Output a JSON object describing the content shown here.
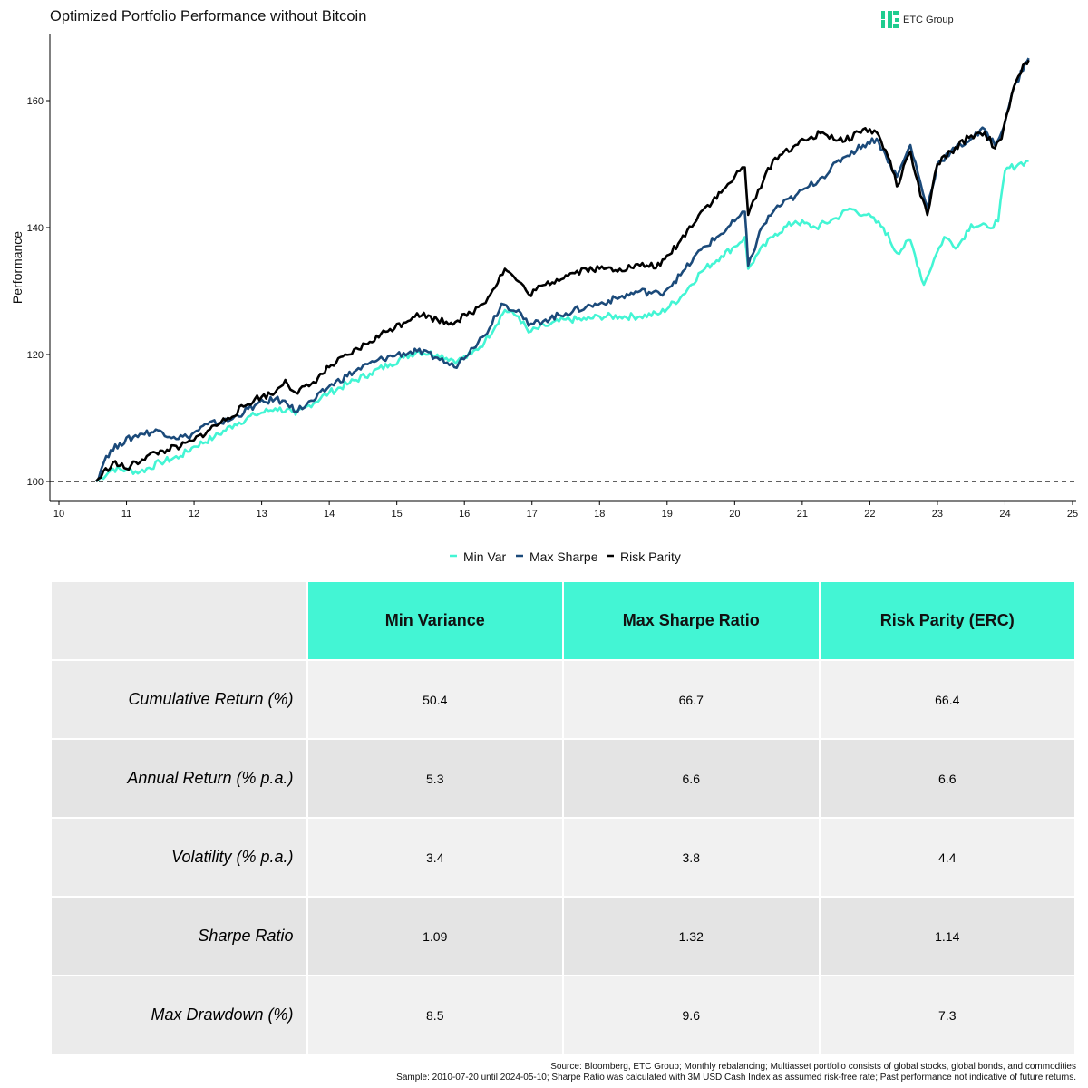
{
  "logo": {
    "text": "ETC Group",
    "color": "#1fcc8f"
  },
  "chart_data": {
    "type": "line",
    "title": "Optimized Portfolio Performance without Bitcoin",
    "xlabel": "",
    "ylabel": "Performance",
    "x_ticks": [
      "10",
      "11",
      "12",
      "13",
      "14",
      "15",
      "16",
      "17",
      "18",
      "19",
      "20",
      "21",
      "22",
      "23",
      "24",
      "25"
    ],
    "y_ticks": [
      100,
      120,
      140,
      160
    ],
    "xlim": [
      2010.0,
      2025.0
    ],
    "ylim": [
      96,
      170
    ],
    "reference_line": {
      "y": 100,
      "style": "dashed"
    },
    "legend_position": "bottom",
    "series": [
      {
        "name": "Min Var",
        "color": "#43f5d4",
        "points": [
          [
            2010.55,
            100
          ],
          [
            2010.8,
            102
          ],
          [
            2011,
            101.8
          ],
          [
            2011.2,
            101.5
          ],
          [
            2011.5,
            103
          ],
          [
            2011.8,
            104
          ],
          [
            2012,
            105.5
          ],
          [
            2012.3,
            107
          ],
          [
            2012.6,
            109
          ],
          [
            2012.9,
            110.5
          ],
          [
            2013.2,
            111.5
          ],
          [
            2013.45,
            111
          ],
          [
            2013.5,
            110.5
          ],
          [
            2013.7,
            112
          ],
          [
            2014,
            114
          ],
          [
            2014.3,
            115.5
          ],
          [
            2014.6,
            117
          ],
          [
            2014.9,
            118.5
          ],
          [
            2015.1,
            119.5
          ],
          [
            2015.3,
            120.5
          ],
          [
            2015.6,
            120
          ],
          [
            2015.9,
            119
          ],
          [
            2016.1,
            120
          ],
          [
            2016.3,
            122
          ],
          [
            2016.6,
            127
          ],
          [
            2016.8,
            126
          ],
          [
            2016.95,
            123.5
          ],
          [
            2017.2,
            124.5
          ],
          [
            2017.5,
            125.5
          ],
          [
            2017.8,
            125.5
          ],
          [
            2018,
            126
          ],
          [
            2018.3,
            126
          ],
          [
            2018.6,
            126
          ],
          [
            2018.9,
            126.5
          ],
          [
            2019.2,
            129
          ],
          [
            2019.5,
            133
          ],
          [
            2019.8,
            135.5
          ],
          [
            2020.0,
            137
          ],
          [
            2020.15,
            138.5
          ],
          [
            2020.2,
            133.5
          ],
          [
            2020.35,
            136
          ],
          [
            2020.6,
            139
          ],
          [
            2020.9,
            141
          ],
          [
            2021.2,
            140
          ],
          [
            2021.5,
            141.5
          ],
          [
            2021.7,
            143
          ],
          [
            2021.95,
            142
          ],
          [
            2022.2,
            140
          ],
          [
            2022.4,
            136
          ],
          [
            2022.6,
            138
          ],
          [
            2022.8,
            131
          ],
          [
            2022.95,
            135
          ],
          [
            2023.1,
            138.5
          ],
          [
            2023.3,
            137
          ],
          [
            2023.5,
            140.5
          ],
          [
            2023.75,
            140
          ],
          [
            2023.9,
            141
          ],
          [
            2024.0,
            149
          ],
          [
            2024.2,
            150
          ],
          [
            2024.35,
            150.5
          ]
        ]
      },
      {
        "name": "Max Sharpe",
        "color": "#1b4a7a",
        "points": [
          [
            2010.55,
            100
          ],
          [
            2010.7,
            104
          ],
          [
            2010.9,
            106
          ],
          [
            2011.2,
            107.5
          ],
          [
            2011.5,
            108
          ],
          [
            2011.7,
            107
          ],
          [
            2011.9,
            107
          ],
          [
            2012.2,
            109
          ],
          [
            2012.5,
            109.5
          ],
          [
            2012.9,
            112
          ],
          [
            2013.2,
            113
          ],
          [
            2013.45,
            112
          ],
          [
            2013.5,
            111
          ],
          [
            2013.8,
            113
          ],
          [
            2014,
            115
          ],
          [
            2014.4,
            117.5
          ],
          [
            2014.7,
            119
          ],
          [
            2015.0,
            120
          ],
          [
            2015.3,
            120.5
          ],
          [
            2015.6,
            119.5
          ],
          [
            2015.85,
            118
          ],
          [
            2016.1,
            121
          ],
          [
            2016.3,
            123
          ],
          [
            2016.55,
            128
          ],
          [
            2016.8,
            127
          ],
          [
            2016.95,
            124.5
          ],
          [
            2017.2,
            125.5
          ],
          [
            2017.5,
            126.5
          ],
          [
            2017.8,
            127.5
          ],
          [
            2018.0,
            128
          ],
          [
            2018.3,
            129
          ],
          [
            2018.6,
            130
          ],
          [
            2018.9,
            129.5
          ],
          [
            2019.2,
            132.5
          ],
          [
            2019.5,
            136.5
          ],
          [
            2019.8,
            139
          ],
          [
            2020.0,
            141
          ],
          [
            2020.15,
            142.5
          ],
          [
            2020.2,
            134
          ],
          [
            2020.4,
            140
          ],
          [
            2020.6,
            143
          ],
          [
            2020.9,
            145
          ],
          [
            2021.1,
            146.5
          ],
          [
            2021.3,
            148
          ],
          [
            2021.6,
            151
          ],
          [
            2021.9,
            153
          ],
          [
            2022.1,
            154
          ],
          [
            2022.3,
            150
          ],
          [
            2022.4,
            148
          ],
          [
            2022.6,
            153
          ],
          [
            2022.75,
            147
          ],
          [
            2022.85,
            143
          ],
          [
            2023.0,
            150
          ],
          [
            2023.2,
            152
          ],
          [
            2023.5,
            154
          ],
          [
            2023.7,
            155.5
          ],
          [
            2023.85,
            153
          ],
          [
            2023.95,
            155
          ],
          [
            2024.1,
            161
          ],
          [
            2024.3,
            166
          ],
          [
            2024.35,
            166.7
          ]
        ]
      },
      {
        "name": "Risk Parity",
        "color": "#000000",
        "points": [
          [
            2010.55,
            100
          ],
          [
            2010.8,
            103
          ],
          [
            2011.0,
            102
          ],
          [
            2011.3,
            104
          ],
          [
            2011.6,
            105
          ],
          [
            2011.8,
            105.5
          ],
          [
            2012.0,
            106.5
          ],
          [
            2012.2,
            108
          ],
          [
            2012.5,
            110
          ],
          [
            2012.9,
            113
          ],
          [
            2013.2,
            114
          ],
          [
            2013.35,
            116
          ],
          [
            2013.5,
            114
          ],
          [
            2013.7,
            115
          ],
          [
            2014.0,
            118
          ],
          [
            2014.3,
            120
          ],
          [
            2014.6,
            122
          ],
          [
            2014.9,
            124
          ],
          [
            2015.1,
            125
          ],
          [
            2015.3,
            126.5
          ],
          [
            2015.6,
            125.5
          ],
          [
            2015.8,
            125
          ],
          [
            2016.1,
            126.5
          ],
          [
            2016.35,
            129
          ],
          [
            2016.6,
            133.5
          ],
          [
            2016.8,
            131.5
          ],
          [
            2016.95,
            129.5
          ],
          [
            2017.2,
            131
          ],
          [
            2017.5,
            132.5
          ],
          [
            2017.8,
            133.5
          ],
          [
            2018.0,
            133.5
          ],
          [
            2018.3,
            133.5
          ],
          [
            2018.6,
            134
          ],
          [
            2018.9,
            134
          ],
          [
            2019.2,
            138
          ],
          [
            2019.5,
            142.5
          ],
          [
            2019.8,
            145.5
          ],
          [
            2020.0,
            148
          ],
          [
            2020.15,
            149.5
          ],
          [
            2020.2,
            142
          ],
          [
            2020.35,
            146
          ],
          [
            2020.6,
            151
          ],
          [
            2020.9,
            153
          ],
          [
            2021.1,
            154
          ],
          [
            2021.3,
            155
          ],
          [
            2021.6,
            153.5
          ],
          [
            2021.9,
            155.5
          ],
          [
            2022.1,
            155
          ],
          [
            2022.3,
            150.5
          ],
          [
            2022.4,
            146.5
          ],
          [
            2022.6,
            152
          ],
          [
            2022.75,
            145
          ],
          [
            2022.85,
            142
          ],
          [
            2023.0,
            150
          ],
          [
            2023.2,
            152
          ],
          [
            2023.5,
            154.5
          ],
          [
            2023.7,
            155
          ],
          [
            2023.85,
            152.5
          ],
          [
            2023.95,
            154
          ],
          [
            2024.1,
            161
          ],
          [
            2024.3,
            166
          ],
          [
            2024.35,
            166.4
          ]
        ]
      }
    ]
  },
  "table": {
    "columns": [
      "Min Variance",
      "Max Sharpe Ratio",
      "Risk Parity (ERC)"
    ],
    "rows": [
      {
        "label": "Cumulative Return (%)",
        "values": [
          "50.4",
          "66.7",
          "66.4"
        ]
      },
      {
        "label": "Annual Return (% p.a.)",
        "values": [
          "5.3",
          "6.6",
          "6.6"
        ]
      },
      {
        "label": "Volatility (% p.a.)",
        "values": [
          "3.4",
          "3.8",
          "4.4"
        ]
      },
      {
        "label": "Sharpe Ratio",
        "values": [
          "1.09",
          "1.32",
          "1.14"
        ]
      },
      {
        "label": "Max Drawdown (%)",
        "values": [
          "8.5",
          "9.6",
          "7.3"
        ]
      }
    ],
    "header_color": "#43f5d4"
  },
  "footnote": {
    "line1": "Source: Bloomberg, ETC Group; Monthly rebalancing; Multiasset portfolio consists of global stocks, global bonds, and commodities",
    "line2": "Sample: 2010-07-20 until 2024-05-10; Sharpe Ratio was calculated with 3M USD Cash Index as assumed risk-free rate; Past performance not indicative of future returns."
  }
}
